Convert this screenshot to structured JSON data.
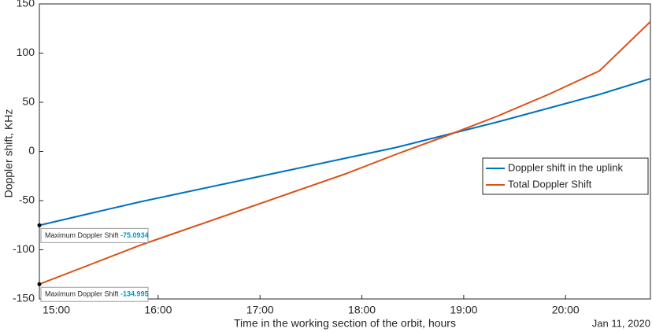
{
  "chart_data": {
    "type": "line",
    "x": [
      "14:50",
      "15:20",
      "15:50",
      "16:20",
      "16:50",
      "17:20",
      "17:50",
      "18:20",
      "18:50",
      "19:20",
      "19:50",
      "20:20",
      "20:50"
    ],
    "xlim": [
      "14:50",
      "20:50"
    ],
    "xticks": [
      "15:00",
      "16:00",
      "17:00",
      "18:00",
      "19:00",
      "20:00"
    ],
    "ylim": [
      -150,
      150
    ],
    "yticks": [
      -150,
      -100,
      -50,
      0,
      50,
      100,
      150
    ],
    "xlabel": "Time in the working section of the orbit, hours",
    "ylabel": "Doppler shift, KHz",
    "date_label": "Jan 11, 2020",
    "series": [
      {
        "name": "Doppler shift in the uplink",
        "color": "#0072bd",
        "values": [
          -75.0934,
          -63,
          -51,
          -40,
          -29,
          -18,
          -7,
          4,
          17,
          30,
          44,
          58,
          74
        ]
      },
      {
        "name": "Total Doppler Shift",
        "color": "#d95319",
        "values": [
          -134.995,
          -115,
          -95,
          -77,
          -59,
          -41,
          -23,
          -3,
          16,
          36,
          58,
          82,
          132
        ]
      }
    ],
    "annotations": [
      {
        "label": "Maximum Doppler Shift",
        "x": "14:50",
        "value": -75.0934
      },
      {
        "label": "Maximum Doppler Shift",
        "x": "14:50",
        "value": -134.995
      }
    ]
  }
}
